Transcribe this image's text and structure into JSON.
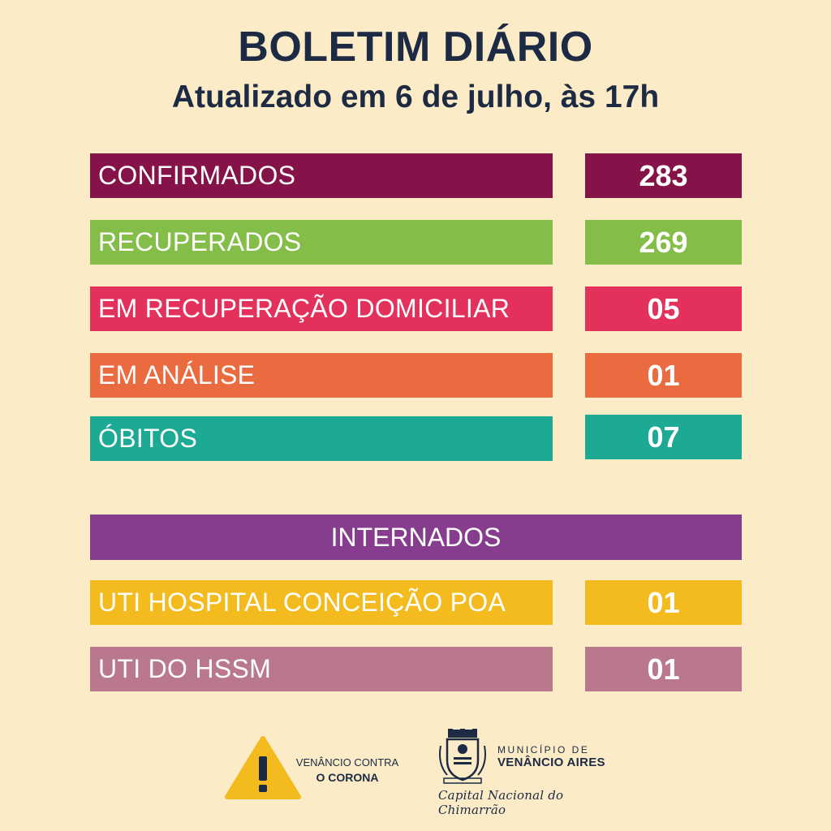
{
  "header": {
    "title": "BOLETIM DIÁRIO",
    "subtitle": "Atualizado em 6 de julho, às 17h"
  },
  "rows": [
    {
      "label": "CONFIRMADOS",
      "value": "283",
      "color": "#85134a"
    },
    {
      "label": "RECUPERADOS",
      "value": "269",
      "color": "#84bd47"
    },
    {
      "label": "EM RECUPERAÇÃO DOMICILIAR",
      "value": "05",
      "color": "#e3315b"
    },
    {
      "label": "EM ANÁLISE",
      "value": "01",
      "color": "#ea6b3f"
    },
    {
      "label": "ÓBITOS",
      "value": "07",
      "color": "#1daa94"
    }
  ],
  "internados": {
    "title": "INTERNADOS",
    "color": "#873d8d",
    "rows": [
      {
        "label": "UTI HOSPITAL CONCEIÇÃO POA",
        "value": "01",
        "color": "#f4bb1f"
      },
      {
        "label": "UTI DO HSSM",
        "value": "01",
        "color": "#ba788c"
      }
    ]
  },
  "footer": {
    "campaign_line1": "VENÂNCIO CONTRA",
    "campaign_line2": "O CORONA",
    "municipality_small": "MUNICÍPIO DE",
    "municipality_name": "VENÂNCIO AIRES",
    "tagline": "Capital Nacional do Chimarrão",
    "warning_icon": "warning-triangle-icon",
    "crest_icon": "municipal-crest-icon"
  }
}
